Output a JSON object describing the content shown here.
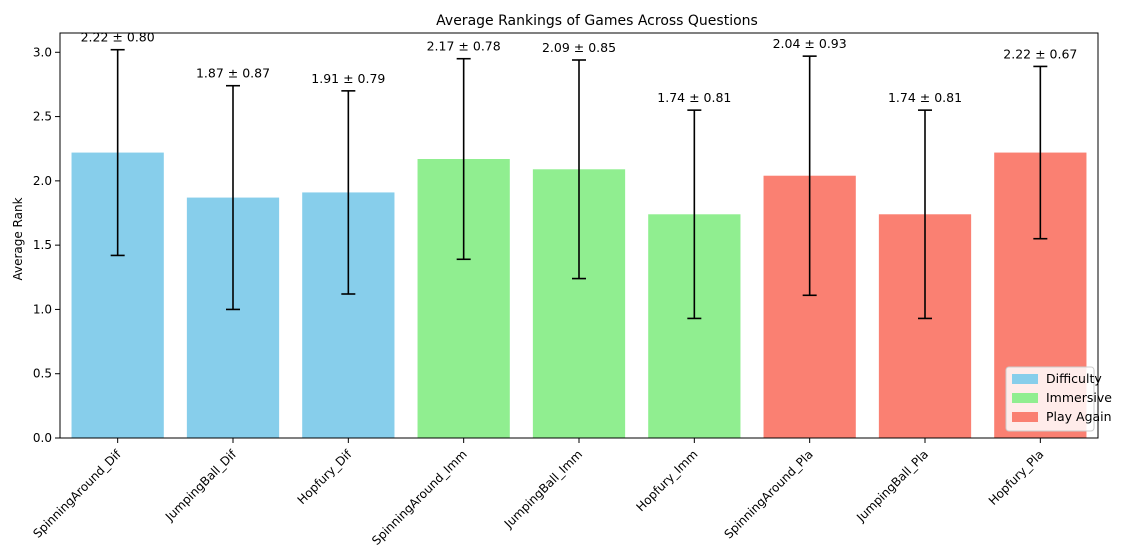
{
  "chart_data": {
    "type": "bar",
    "title": "Average Rankings of Games Across Questions",
    "xlabel": "",
    "ylabel": "Average Rank",
    "ylim": [
      0,
      3.15
    ],
    "yticks": [
      0.0,
      0.5,
      1.0,
      1.5,
      2.0,
      2.5,
      3.0
    ],
    "ytick_labels": [
      "0.0",
      "0.5",
      "1.0",
      "1.5",
      "2.0",
      "2.5",
      "3.0"
    ],
    "grid": false,
    "legend_position": "bottom-right",
    "categories": [
      "SpinningAround_Dif",
      "JumpingBall_Dif",
      "Hopfury_Dif",
      "SpinningAround_Imm",
      "JumpingBall_Imm",
      "Hopfury_Imm",
      "SpinningAround_Pla",
      "JumpingBall_Pla",
      "Hopfury_Pla"
    ],
    "values": [
      2.22,
      1.87,
      1.91,
      2.17,
      2.09,
      1.74,
      2.04,
      1.74,
      2.22
    ],
    "errors": [
      0.8,
      0.87,
      0.79,
      0.78,
      0.85,
      0.81,
      0.93,
      0.81,
      0.67
    ],
    "data_labels": [
      "2.22 ± 0.80",
      "1.87 ± 0.87",
      "1.91 ± 0.79",
      "2.17 ± 0.78",
      "2.09 ± 0.85",
      "1.74 ± 0.81",
      "2.04 ± 0.93",
      "1.74 ± 0.81",
      "2.22 ± 0.67"
    ],
    "groups": [
      0,
      0,
      0,
      1,
      1,
      1,
      2,
      2,
      2
    ],
    "legend": [
      {
        "label": "Difficulty",
        "color": "#87ceeb"
      },
      {
        "label": "Immersive",
        "color": "#90ee90"
      },
      {
        "label": "Play Again",
        "color": "#fa8072"
      }
    ]
  }
}
